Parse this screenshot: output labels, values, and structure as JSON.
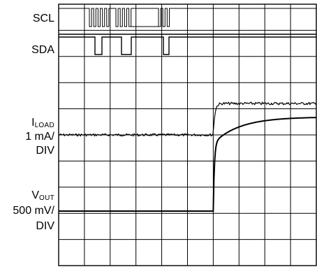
{
  "chart_data": {
    "type": "line",
    "title": "",
    "grid": true,
    "grid_divisions": {
      "horizontal": 10,
      "vertical": 10
    },
    "x_timebase": "",
    "channels": [
      {
        "name": "SCL",
        "kind": "digital",
        "label_lines": [
          "SCL"
        ],
        "activity": "clock bursts",
        "burst_count": 3
      },
      {
        "name": "SDA",
        "kind": "digital",
        "label_lines": [
          "SDA"
        ],
        "activity": "data pulses low"
      },
      {
        "name": "ILOAD",
        "kind": "analog",
        "label_main": "I",
        "label_sub": "LOAD",
        "label_lines": [
          "1 mA/",
          "DIV"
        ],
        "scale": "1 mA/DIV",
        "step_at_div": 6.0,
        "initial_level_div": 0,
        "final_level_div": 1.2,
        "settle": "fast, overshoot-free"
      },
      {
        "name": "VOUT",
        "kind": "analog",
        "label_main": "V",
        "label_sub": "OUT",
        "label_lines": [
          "500 mV/",
          "DIV"
        ],
        "scale": "500 mV/DIV",
        "step_at_div": 6.0,
        "initial_level_div": 0,
        "final_level_div": 3.6,
        "settle": "exponential rise"
      }
    ]
  }
}
